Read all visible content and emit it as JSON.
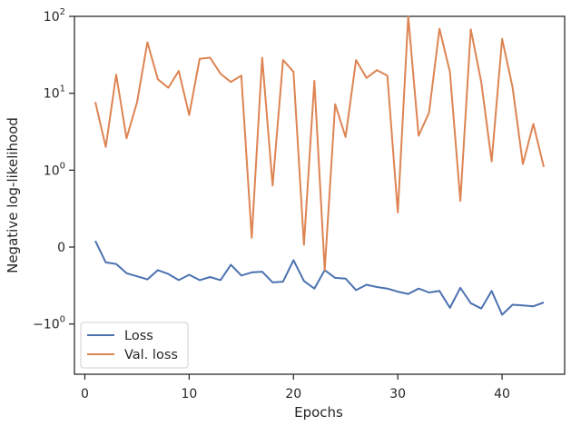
{
  "chart_data": {
    "type": "line",
    "title": "",
    "xlabel": "Epochs",
    "ylabel": "Negative log-likelihood",
    "yscale": "symlog",
    "xlim": [
      -1,
      46
    ],
    "x_ticks": [
      0,
      10,
      20,
      30,
      40
    ],
    "y_ticks": [
      {
        "value": 100,
        "label_base": "10",
        "label_exp": "2"
      },
      {
        "value": 10,
        "label_base": "10",
        "label_exp": "1"
      },
      {
        "value": 1,
        "label_base": "10",
        "label_exp": "0"
      },
      {
        "value": 0,
        "label_base": "0",
        "label_exp": ""
      },
      {
        "value": -1,
        "label_base": "−10",
        "label_exp": "0"
      }
    ],
    "grid": false,
    "legend_position": "lower-left",
    "x": [
      1,
      2,
      3,
      4,
      5,
      6,
      7,
      8,
      9,
      10,
      11,
      12,
      13,
      14,
      15,
      16,
      17,
      18,
      19,
      20,
      21,
      22,
      23,
      24,
      25,
      26,
      27,
      28,
      29,
      30,
      31,
      32,
      33,
      34,
      35,
      36,
      37,
      38,
      39,
      40,
      41,
      42,
      43,
      44
    ],
    "series": [
      {
        "name": "Loss",
        "color": "#4c72b0",
        "values": [
          0.08,
          -0.2,
          -0.22,
          -0.34,
          -0.38,
          -0.42,
          -0.3,
          -0.35,
          -0.43,
          -0.36,
          -0.43,
          -0.39,
          -0.43,
          -0.23,
          -0.37,
          -0.33,
          -0.32,
          -0.46,
          -0.45,
          -0.17,
          -0.44,
          -0.54,
          -0.3,
          -0.4,
          -0.41,
          -0.56,
          -0.49,
          -0.52,
          -0.54,
          -0.58,
          -0.61,
          -0.54,
          -0.59,
          -0.57,
          -0.79,
          -0.53,
          -0.73,
          -0.8,
          -0.57,
          -0.88,
          -0.75,
          -0.76,
          -0.77,
          -0.72
        ]
      },
      {
        "name": "Val. loss",
        "color": "#dd8452",
        "values": [
          7.7,
          2.0,
          17.5,
          2.6,
          7.6,
          46,
          15.2,
          11.8,
          19.5,
          5.2,
          28,
          29,
          18,
          14,
          17,
          0.12,
          29,
          0.8,
          27,
          19,
          0.03,
          14.5,
          -0.3,
          7.2,
          2.7,
          27,
          15.8,
          20,
          17,
          0.45,
          100,
          2.8,
          5.6,
          69,
          19,
          0.6,
          68,
          14,
          1.3,
          51,
          12,
          1.2,
          4,
          1.1
        ]
      }
    ]
  }
}
